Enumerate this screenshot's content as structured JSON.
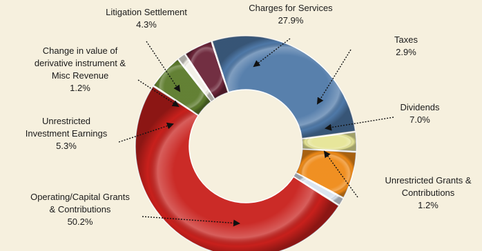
{
  "chart_data": {
    "type": "pie",
    "donut": true,
    "title": "",
    "legend": "none",
    "categories": [
      "Charges for Services",
      "Taxes",
      "Dividends",
      "Unrestricted Grants & Contributions",
      "Operating/Capital Grants & Contributions",
      "Unrestricted Investment Earnings",
      "Change in value of derivative instrument & Misc Revenue",
      "Litigation Settlement"
    ],
    "values": [
      27.9,
      2.9,
      7.0,
      1.2,
      50.2,
      5.3,
      1.2,
      4.3
    ],
    "value_labels": [
      "27.9%",
      "2.9%",
      "7.0%",
      "1.2%",
      "50.2%",
      "5.3%",
      "1.2%",
      "4.3%"
    ],
    "label_lines": [
      [
        "Charges for Services"
      ],
      [
        "Taxes"
      ],
      [
        "Dividends"
      ],
      [
        "Unrestricted Grants &",
        "Contributions"
      ],
      [
        "Operating/Capital Grants",
        "& Contributions"
      ],
      [
        "Unrestricted",
        "Investment Earnings"
      ],
      [
        "Change in value of",
        "derivative instrument &",
        "Misc Revenue"
      ],
      [
        "Litigation Settlement"
      ]
    ],
    "colors": [
      "#4f79a8",
      "#e6e596",
      "#ef8a17",
      "#d9e3ee",
      "#c8201c",
      "#5b7a2a",
      "#f1efe6",
      "#6b2438"
    ]
  }
}
